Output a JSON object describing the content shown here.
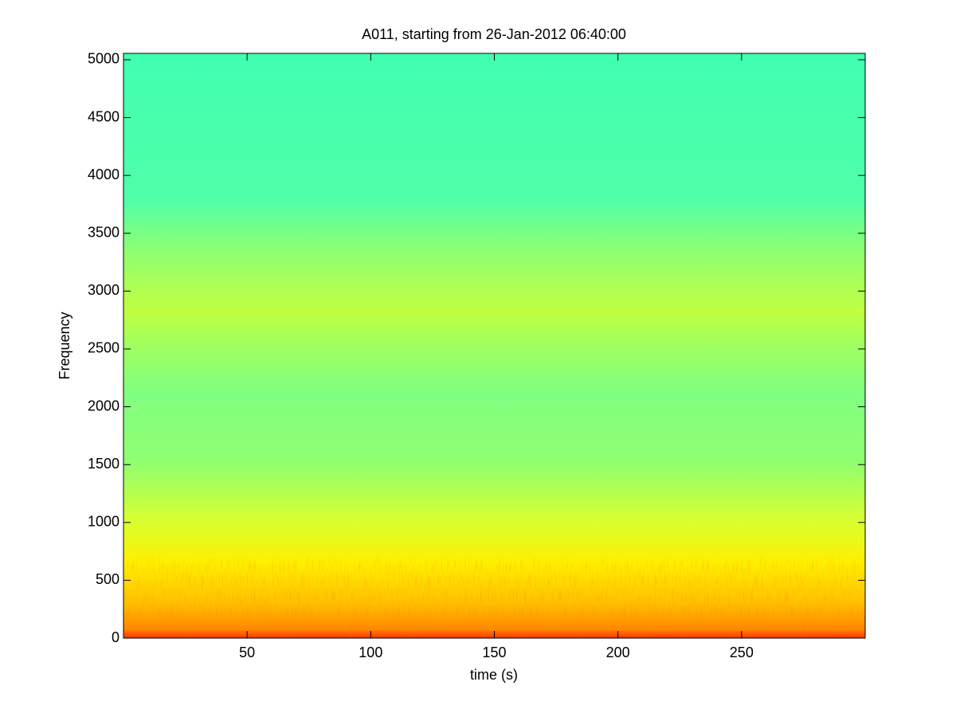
{
  "chart_data": {
    "type": "spectrogram",
    "title": "A011, starting from 26-Jan-2012 06:40:00",
    "x_label": "time (s)",
    "y_label": "Frequency",
    "xlim": [
      0,
      300
    ],
    "xticks": [
      50,
      100,
      150,
      200,
      250
    ],
    "ylim": [
      0,
      5055
    ],
    "yticks": [
      0,
      500,
      1000,
      1500,
      2000,
      2500,
      3000,
      3500,
      4000,
      4500,
      5000
    ]
  }
}
